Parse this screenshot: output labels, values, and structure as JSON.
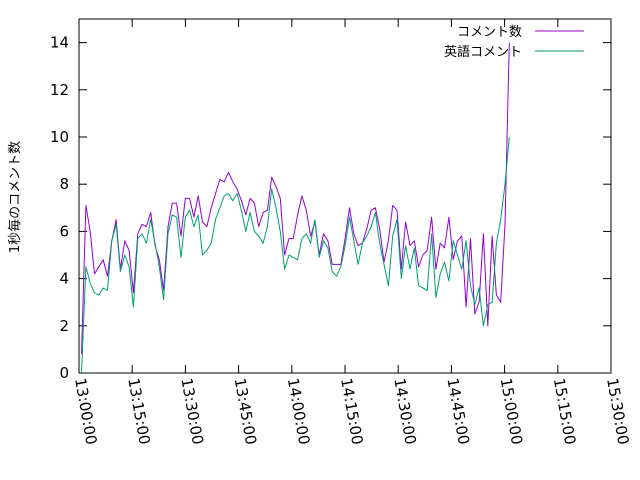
{
  "chart_data": {
    "type": "line",
    "title": "",
    "xlabel": "",
    "ylabel": "1秒毎のコメント数",
    "ylim": [
      0,
      15
    ],
    "yticks": [
      0,
      2,
      4,
      6,
      8,
      10,
      12,
      14
    ],
    "xlim": [
      "13:00:00",
      "15:30:00"
    ],
    "xticks": [
      "13:00:00",
      "13:15:00",
      "13:30:00",
      "13:45:00",
      "14:00:00",
      "14:15:00",
      "14:30:00",
      "14:45:00",
      "15:00:00",
      "15:15:00",
      "15:30:00"
    ],
    "grid": false,
    "legend_position": "top-right",
    "series": [
      {
        "name": "コメント数",
        "color": "#9400d3",
        "points": [
          [
            "13:00:43",
            0.8
          ],
          [
            "13:01:56",
            7.1
          ],
          [
            "13:03:09",
            6.0
          ],
          [
            "13:04:23",
            4.2
          ],
          [
            "13:05:36",
            4.5
          ],
          [
            "13:06:49",
            4.8
          ],
          [
            "13:08:02",
            4.1
          ],
          [
            "13:09:15",
            5.6
          ],
          [
            "13:10:28",
            6.5
          ],
          [
            "13:11:41",
            4.4
          ],
          [
            "13:12:54",
            5.6
          ],
          [
            "13:14:07",
            5.2
          ],
          [
            "13:15:20",
            3.4
          ],
          [
            "13:16:34",
            5.9
          ],
          [
            "13:17:47",
            6.3
          ],
          [
            "13:19:00",
            6.2
          ],
          [
            "13:20:13",
            6.8
          ],
          [
            "13:21:26",
            5.4
          ],
          [
            "13:22:39",
            4.8
          ],
          [
            "13:23:52",
            3.5
          ],
          [
            "13:25:05",
            6.2
          ],
          [
            "13:26:18",
            7.2
          ],
          [
            "13:27:31",
            7.2
          ],
          [
            "13:28:45",
            5.8
          ],
          [
            "13:29:58",
            7.4
          ],
          [
            "13:31:11",
            7.4
          ],
          [
            "13:32:24",
            6.6
          ],
          [
            "13:33:37",
            7.5
          ],
          [
            "13:34:50",
            6.4
          ],
          [
            "13:36:03",
            6.2
          ],
          [
            "13:37:16",
            7.0
          ],
          [
            "13:38:29",
            7.6
          ],
          [
            "13:39:43",
            8.2
          ],
          [
            "13:40:56",
            8.1
          ],
          [
            "13:42:09",
            8.5
          ],
          [
            "13:43:22",
            8.1
          ],
          [
            "13:44:35",
            7.8
          ],
          [
            "13:45:48",
            7.3
          ],
          [
            "13:47:01",
            6.7
          ],
          [
            "13:48:14",
            7.4
          ],
          [
            "13:49:27",
            7.2
          ],
          [
            "13:50:40",
            6.2
          ],
          [
            "13:51:54",
            6.8
          ],
          [
            "13:53:07",
            6.9
          ],
          [
            "13:54:20",
            8.3
          ],
          [
            "13:55:33",
            7.9
          ],
          [
            "13:56:46",
            7.4
          ],
          [
            "13:57:59",
            5.0
          ],
          [
            "13:59:12",
            5.7
          ],
          [
            "14:00:25",
            5.7
          ],
          [
            "14:01:38",
            6.7
          ],
          [
            "14:02:51",
            7.5
          ],
          [
            "14:04:05",
            6.9
          ],
          [
            "14:05:18",
            5.8
          ],
          [
            "14:06:31",
            6.4
          ],
          [
            "14:07:44",
            5.0
          ],
          [
            "14:08:57",
            5.9
          ],
          [
            "14:10:10",
            5.6
          ],
          [
            "14:11:23",
            4.6
          ],
          [
            "14:12:36",
            4.6
          ],
          [
            "14:13:49",
            4.6
          ],
          [
            "14:15:02",
            5.7
          ],
          [
            "14:16:16",
            7.0
          ],
          [
            "14:17:29",
            5.9
          ],
          [
            "14:18:42",
            5.4
          ],
          [
            "14:19:55",
            5.5
          ],
          [
            "14:21:08",
            6.1
          ],
          [
            "14:22:21",
            6.9
          ],
          [
            "14:23:34",
            7.0
          ],
          [
            "14:24:47",
            6.1
          ],
          [
            "14:26:00",
            4.7
          ],
          [
            "14:27:14",
            5.6
          ],
          [
            "14:28:27",
            7.1
          ],
          [
            "14:29:40",
            6.9
          ],
          [
            "14:30:53",
            4.4
          ],
          [
            "14:32:06",
            6.4
          ],
          [
            "14:33:19",
            5.4
          ],
          [
            "14:34:32",
            5.6
          ],
          [
            "14:35:45",
            4.5
          ],
          [
            "14:36:58",
            5.0
          ],
          [
            "14:38:11",
            5.2
          ],
          [
            "14:39:25",
            6.6
          ],
          [
            "14:40:38",
            4.4
          ],
          [
            "14:41:51",
            5.5
          ],
          [
            "14:43:04",
            5.3
          ],
          [
            "14:44:17",
            6.6
          ],
          [
            "14:45:30",
            4.8
          ],
          [
            "14:46:43",
            5.6
          ],
          [
            "14:47:56",
            5.8
          ],
          [
            "14:49:09",
            2.8
          ],
          [
            "14:50:23",
            5.7
          ],
          [
            "14:51:36",
            2.5
          ],
          [
            "14:52:49",
            3.0
          ],
          [
            "14:54:02",
            5.9
          ],
          [
            "14:55:15",
            2.0
          ],
          [
            "14:56:28",
            5.8
          ],
          [
            "14:57:41",
            3.3
          ],
          [
            "14:58:54",
            3.0
          ],
          [
            "15:00:07",
            6.3
          ],
          [
            "15:01:20",
            14.0
          ]
        ]
      },
      {
        "name": "英語コメント",
        "color": "#009e73",
        "points": [
          [
            "13:00:43",
            0.0
          ],
          [
            "13:01:56",
            4.5
          ],
          [
            "13:03:09",
            3.8
          ],
          [
            "13:04:23",
            3.4
          ],
          [
            "13:05:36",
            3.3
          ],
          [
            "13:06:49",
            3.6
          ],
          [
            "13:08:02",
            3.5
          ],
          [
            "13:09:15",
            5.6
          ],
          [
            "13:10:28",
            6.3
          ],
          [
            "13:11:41",
            4.3
          ],
          [
            "13:12:54",
            5.0
          ],
          [
            "13:14:07",
            4.5
          ],
          [
            "13:15:20",
            2.8
          ],
          [
            "13:16:34",
            5.7
          ],
          [
            "13:17:47",
            5.9
          ],
          [
            "13:19:00",
            5.5
          ],
          [
            "13:20:13",
            6.5
          ],
          [
            "13:21:26",
            5.5
          ],
          [
            "13:22:39",
            4.5
          ],
          [
            "13:23:52",
            3.1
          ],
          [
            "13:25:05",
            5.9
          ],
          [
            "13:26:18",
            6.7
          ],
          [
            "13:27:31",
            6.6
          ],
          [
            "13:28:45",
            4.9
          ],
          [
            "13:29:58",
            6.6
          ],
          [
            "13:31:11",
            6.9
          ],
          [
            "13:32:24",
            6.2
          ],
          [
            "13:33:37",
            6.7
          ],
          [
            "13:34:50",
            5.0
          ],
          [
            "13:36:03",
            5.2
          ],
          [
            "13:37:16",
            5.5
          ],
          [
            "13:38:29",
            6.5
          ],
          [
            "13:39:43",
            7.0
          ],
          [
            "13:40:56",
            7.5
          ],
          [
            "13:42:09",
            7.6
          ],
          [
            "13:43:22",
            7.3
          ],
          [
            "13:44:35",
            7.6
          ],
          [
            "13:45:48",
            6.9
          ],
          [
            "13:47:01",
            6.0
          ],
          [
            "13:48:14",
            6.8
          ],
          [
            "13:49:27",
            6.0
          ],
          [
            "13:50:40",
            5.8
          ],
          [
            "13:51:54",
            5.5
          ],
          [
            "13:53:07",
            6.2
          ],
          [
            "13:54:20",
            7.8
          ],
          [
            "13:55:33",
            7.0
          ],
          [
            "13:56:46",
            6.0
          ],
          [
            "13:57:59",
            4.4
          ],
          [
            "13:59:12",
            5.0
          ],
          [
            "14:00:25",
            4.9
          ],
          [
            "14:01:38",
            4.8
          ],
          [
            "14:02:51",
            5.7
          ],
          [
            "14:04:05",
            5.9
          ],
          [
            "14:05:18",
            5.5
          ],
          [
            "14:06:31",
            6.5
          ],
          [
            "14:07:44",
            4.9
          ],
          [
            "14:08:57",
            5.6
          ],
          [
            "14:10:10",
            5.3
          ],
          [
            "14:11:23",
            4.3
          ],
          [
            "14:12:36",
            4.1
          ],
          [
            "14:13:49",
            4.5
          ],
          [
            "14:15:02",
            5.4
          ],
          [
            "14:16:16",
            6.6
          ],
          [
            "14:17:29",
            5.6
          ],
          [
            "14:18:42",
            4.6
          ],
          [
            "14:19:55",
            5.5
          ],
          [
            "14:21:08",
            5.8
          ],
          [
            "14:22:21",
            6.2
          ],
          [
            "14:23:34",
            6.8
          ],
          [
            "14:24:47",
            5.5
          ],
          [
            "14:26:00",
            4.6
          ],
          [
            "14:27:14",
            3.7
          ],
          [
            "14:28:27",
            5.8
          ],
          [
            "14:29:40",
            6.5
          ],
          [
            "14:30:53",
            4.0
          ],
          [
            "14:32:06",
            5.4
          ],
          [
            "14:33:19",
            4.4
          ],
          [
            "14:34:32",
            5.3
          ],
          [
            "14:35:45",
            3.7
          ],
          [
            "14:36:58",
            3.6
          ],
          [
            "14:38:11",
            3.5
          ],
          [
            "14:39:25",
            5.9
          ],
          [
            "14:40:38",
            3.2
          ],
          [
            "14:41:51",
            4.2
          ],
          [
            "14:43:04",
            4.7
          ],
          [
            "14:44:17",
            3.9
          ],
          [
            "14:45:30",
            5.6
          ],
          [
            "14:46:43",
            5.0
          ],
          [
            "14:47:56",
            4.4
          ],
          [
            "14:49:09",
            5.6
          ],
          [
            "14:50:23",
            3.7
          ],
          [
            "14:51:36",
            2.9
          ],
          [
            "14:52:49",
            3.6
          ],
          [
            "14:54:02",
            2.0
          ],
          [
            "14:55:15",
            2.9
          ],
          [
            "14:56:28",
            3.0
          ],
          [
            "14:57:41",
            5.5
          ],
          [
            "14:58:54",
            6.5
          ],
          [
            "15:00:07",
            8.0
          ],
          [
            "15:01:20",
            10.0
          ]
        ]
      }
    ]
  }
}
